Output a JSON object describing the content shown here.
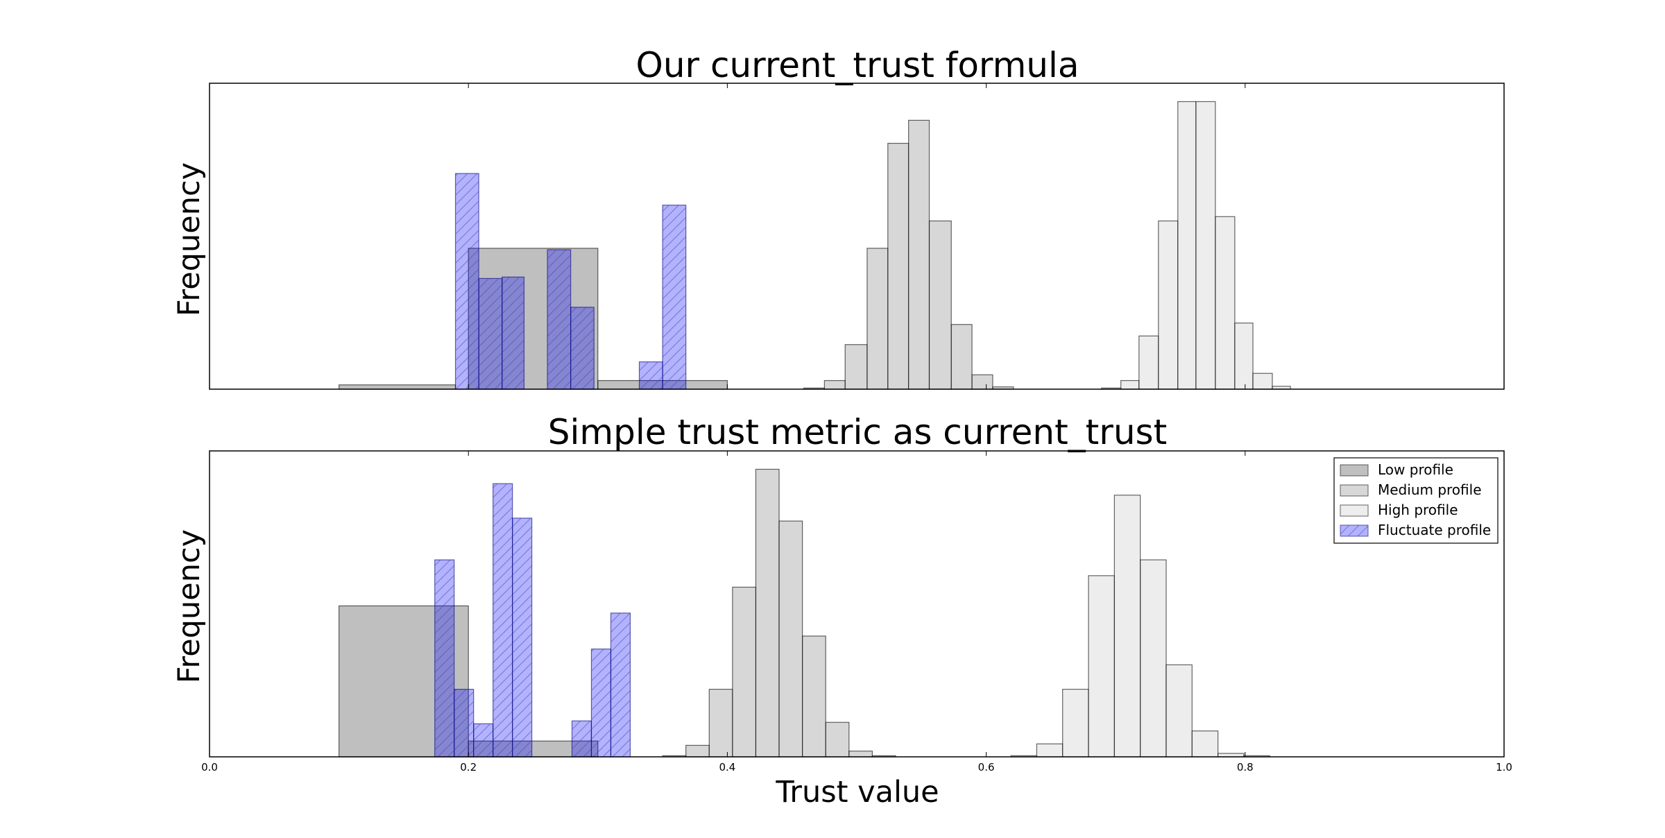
{
  "chart_data": [
    {
      "type": "bar",
      "subtype": "histogram",
      "title": "Our current_trust formula",
      "ylabel": "Frequency",
      "xlabel": "",
      "xlim": [
        0.0,
        1.0
      ],
      "ylim": [
        0,
        100
      ],
      "show_xticks": false,
      "legend": null,
      "series": [
        {
          "name": "Low profile",
          "key": "low",
          "bins": [
            [
              0.1,
              0.19,
              1.5
            ],
            [
              0.2,
              0.3,
              49
            ],
            [
              0.3,
              0.4,
              3
            ]
          ]
        },
        {
          "name": "Medium profile",
          "key": "medium",
          "bins": [
            [
              0.459,
              0.475,
              0.4
            ],
            [
              0.475,
              0.491,
              3
            ],
            [
              0.491,
              0.508,
              15.5
            ],
            [
              0.508,
              0.524,
              49
            ],
            [
              0.524,
              0.54,
              85.5
            ],
            [
              0.54,
              0.556,
              93.5
            ],
            [
              0.556,
              0.573,
              58.5
            ],
            [
              0.573,
              0.589,
              22.5
            ],
            [
              0.589,
              0.605,
              5
            ],
            [
              0.605,
              0.621,
              0.8
            ]
          ]
        },
        {
          "name": "High profile",
          "key": "high",
          "bins": [
            [
              0.689,
              0.704,
              0.4
            ],
            [
              0.704,
              0.718,
              3
            ],
            [
              0.718,
              0.733,
              18.5
            ],
            [
              0.733,
              0.748,
              58.5
            ],
            [
              0.748,
              0.762,
              100
            ],
            [
              0.762,
              0.777,
              100
            ],
            [
              0.777,
              0.792,
              60
            ],
            [
              0.792,
              0.806,
              23
            ],
            [
              0.806,
              0.821,
              5.5
            ],
            [
              0.821,
              0.835,
              1
            ]
          ]
        },
        {
          "name": "Fluctuate profile",
          "key": "fluctuate",
          "bins": [
            [
              0.19,
              0.208,
              75
            ],
            [
              0.208,
              0.226,
              38.5
            ],
            [
              0.226,
              0.243,
              39
            ],
            [
              0.261,
              0.279,
              48.5
            ],
            [
              0.279,
              0.297,
              28.5
            ],
            [
              0.332,
              0.35,
              9.5
            ],
            [
              0.35,
              0.368,
              64
            ]
          ]
        }
      ]
    },
    {
      "type": "bar",
      "subtype": "histogram",
      "title": "Simple trust metric as current_trust",
      "ylabel": "Frequency",
      "xlabel": "Trust value",
      "xlim": [
        0.0,
        1.0
      ],
      "ylim": [
        0,
        100
      ],
      "show_xticks": true,
      "xticks": [
        "0.0",
        "0.2",
        "0.4",
        "0.6",
        "0.8",
        "1.0"
      ],
      "legend": "top-right",
      "series": [
        {
          "name": "Low profile",
          "key": "low",
          "bins": [
            [
              0.1,
              0.2,
              52.5
            ],
            [
              0.2,
              0.3,
              5.5
            ]
          ]
        },
        {
          "name": "Medium profile",
          "key": "medium",
          "bins": [
            [
              0.35,
              0.368,
              0.4
            ],
            [
              0.368,
              0.386,
              4
            ],
            [
              0.386,
              0.404,
              23.5
            ],
            [
              0.404,
              0.422,
              59
            ],
            [
              0.422,
              0.44,
              100
            ],
            [
              0.44,
              0.458,
              82
            ],
            [
              0.458,
              0.476,
              42
            ],
            [
              0.476,
              0.494,
              12
            ],
            [
              0.494,
              0.512,
              2
            ],
            [
              0.512,
              0.53,
              0.4
            ]
          ]
        },
        {
          "name": "High profile",
          "key": "high",
          "bins": [
            [
              0.619,
              0.639,
              0.4
            ],
            [
              0.639,
              0.659,
              4.5
            ],
            [
              0.659,
              0.679,
              23.5
            ],
            [
              0.679,
              0.699,
              63
            ],
            [
              0.699,
              0.719,
              91
            ],
            [
              0.719,
              0.739,
              68.5
            ],
            [
              0.739,
              0.759,
              32
            ],
            [
              0.759,
              0.779,
              9
            ],
            [
              0.779,
              0.799,
              1.2
            ],
            [
              0.799,
              0.819,
              0.4
            ]
          ]
        },
        {
          "name": "Fluctuate profile",
          "key": "fluctuate",
          "bins": [
            [
              0.174,
              0.189,
              68.5
            ],
            [
              0.189,
              0.204,
              23.5
            ],
            [
              0.204,
              0.219,
              11.5
            ],
            [
              0.219,
              0.234,
              95
            ],
            [
              0.234,
              0.249,
              83
            ],
            [
              0.28,
              0.295,
              12.5
            ],
            [
              0.295,
              0.31,
              37.5
            ],
            [
              0.31,
              0.325,
              50
            ]
          ]
        }
      ]
    }
  ],
  "style": {
    "low": {
      "fill": "#808080",
      "fill_opacity": 0.5,
      "stroke": "#000000",
      "hatch": false
    },
    "medium": {
      "fill": "#b0b0b0",
      "fill_opacity": 0.5,
      "stroke": "#000000",
      "hatch": false
    },
    "high": {
      "fill": "#dcdcdc",
      "fill_opacity": 0.5,
      "stroke": "#000000",
      "hatch": false
    },
    "fluctuate": {
      "fill": "#0000ff",
      "fill_opacity": 0.3,
      "stroke": "#000080",
      "hatch": true
    }
  }
}
